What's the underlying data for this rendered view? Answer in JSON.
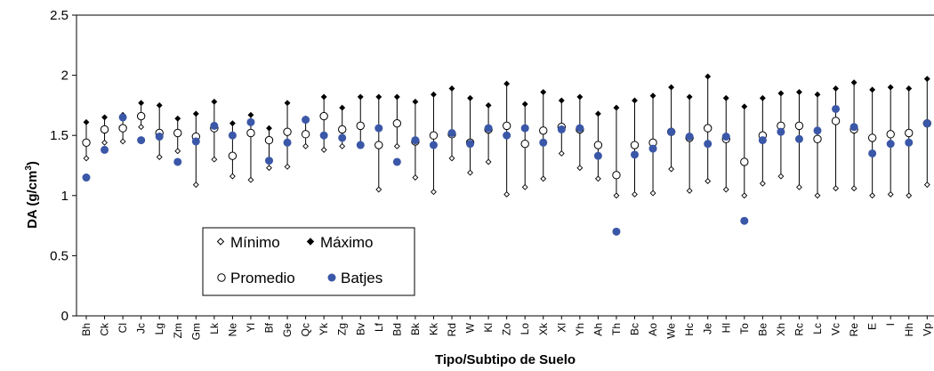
{
  "chart_data": {
    "type": "scatter",
    "xlabel": "Tipo/Subtipo de Suelo",
    "ylabel_main": "DA (g/cm",
    "ylabel_sup": "3",
    "ylabel_end": ")",
    "ylim": [
      0,
      2.5
    ],
    "yticks": [
      0,
      0.5,
      1,
      1.5,
      2,
      2.5
    ],
    "ytick_labels": [
      "0",
      "0.5",
      "1",
      "1.5",
      "2",
      "2.5"
    ],
    "grid": false,
    "legend_position": "inside-bottom-left",
    "categories": [
      "Bh",
      "Ck",
      "Cl",
      "Jc",
      "Lg",
      "Zm",
      "Gm",
      "Lk",
      "Ne",
      "Yl",
      "Bf",
      "Ge",
      "Qc",
      "Yk",
      "Zg",
      "Bv",
      "Lf",
      "Bd",
      "Bk",
      "Kk",
      "Rd",
      "W",
      "Kl",
      "Zo",
      "Lo",
      "Xk",
      "Xl",
      "Yh",
      "Ah",
      "Th",
      "Bc",
      "Ao",
      "We",
      "Hc",
      "Je",
      "Hl",
      "To",
      "Be",
      "Xh",
      "Rc",
      "Lc",
      "Vc",
      "Re",
      "E",
      "I",
      "Hh",
      "Vp"
    ],
    "series": [
      {
        "name": "Mínimo",
        "marker": "small-open-diamond",
        "values": [
          1.31,
          1.44,
          1.45,
          1.57,
          1.32,
          1.37,
          1.09,
          1.3,
          1.16,
          1.13,
          1.23,
          1.24,
          1.41,
          1.38,
          1.41,
          1.42,
          1.05,
          1.41,
          1.15,
          1.03,
          1.31,
          1.19,
          1.28,
          1.01,
          1.07,
          1.14,
          1.35,
          1.23,
          1.14,
          1.0,
          1.01,
          1.02,
          1.22,
          1.04,
          1.12,
          1.05,
          1.0,
          1.1,
          1.16,
          1.07,
          1.0,
          1.06,
          1.06,
          1.0,
          1.01,
          1.0,
          1.09
        ]
      },
      {
        "name": "Máximo",
        "marker": "small-filled-diamond",
        "values": [
          1.61,
          1.65,
          1.67,
          1.77,
          1.75,
          1.64,
          1.68,
          1.78,
          1.6,
          1.67,
          1.56,
          1.77,
          1.64,
          1.82,
          1.73,
          1.82,
          1.82,
          1.82,
          1.78,
          1.84,
          1.89,
          1.81,
          1.75,
          1.93,
          1.76,
          1.86,
          1.79,
          1.82,
          1.68,
          1.73,
          1.79,
          1.83,
          1.9,
          1.82,
          1.99,
          1.81,
          1.74,
          1.81,
          1.85,
          1.86,
          1.84,
          1.89,
          1.94,
          1.88,
          1.9,
          1.89,
          1.97
        ]
      },
      {
        "name": "Promedio",
        "marker": "open-circle",
        "values": [
          1.44,
          1.55,
          1.56,
          1.66,
          1.52,
          1.52,
          1.49,
          1.56,
          1.33,
          1.52,
          1.46,
          1.53,
          1.51,
          1.66,
          1.55,
          1.58,
          1.42,
          1.6,
          1.45,
          1.5,
          1.51,
          1.44,
          1.55,
          1.58,
          1.43,
          1.54,
          1.57,
          1.55,
          1.42,
          1.17,
          1.42,
          1.44,
          1.53,
          1.48,
          1.56,
          1.47,
          1.28,
          1.5,
          1.58,
          1.58,
          1.47,
          1.62,
          1.55,
          1.48,
          1.51,
          1.52,
          1.6
        ]
      },
      {
        "name": "Batjes",
        "marker": "filled-circle",
        "color": "#3a57a8",
        "values": [
          1.15,
          1.38,
          1.65,
          1.46,
          1.49,
          1.28,
          1.45,
          1.58,
          1.5,
          1.61,
          1.29,
          1.44,
          1.63,
          1.5,
          1.48,
          1.42,
          1.56,
          1.28,
          1.46,
          1.42,
          1.52,
          1.43,
          1.56,
          1.5,
          1.56,
          1.44,
          1.55,
          1.56,
          1.33,
          0.7,
          1.34,
          1.39,
          1.53,
          1.49,
          1.43,
          1.49,
          0.79,
          1.46,
          1.53,
          1.47,
          1.54,
          1.72,
          1.57,
          1.35,
          1.43,
          1.44,
          1.6
        ]
      }
    ]
  }
}
